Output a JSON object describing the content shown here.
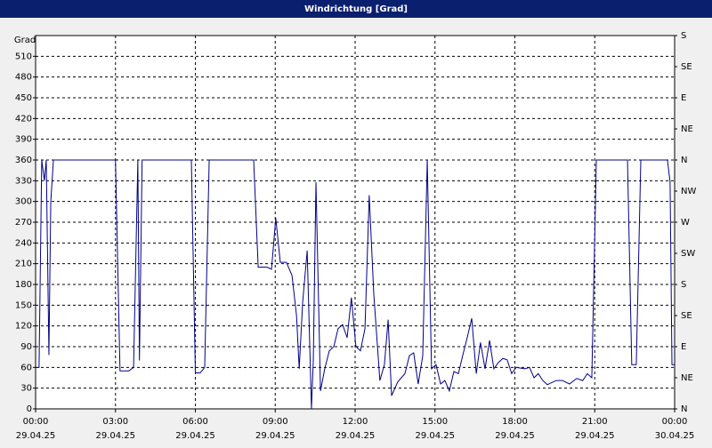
{
  "chart_data": {
    "type": "line",
    "title": "Windrichtung [Grad]",
    "ylabel": "Grad",
    "color": "#00008b",
    "grid": true,
    "ylim": [
      0,
      540
    ],
    "yticks": [
      0,
      30,
      60,
      90,
      120,
      150,
      180,
      210,
      240,
      270,
      300,
      330,
      360,
      390,
      420,
      450,
      480,
      510
    ],
    "y2lim": [
      0,
      540
    ],
    "y2ticks": [
      {
        "value": 0,
        "label": "N"
      },
      {
        "value": 45,
        "label": "NE"
      },
      {
        "value": 90,
        "label": "E"
      },
      {
        "value": 135,
        "label": "SE"
      },
      {
        "value": 180,
        "label": "S"
      },
      {
        "value": 225,
        "label": "SW"
      },
      {
        "value": 270,
        "label": "W"
      },
      {
        "value": 315,
        "label": "NW"
      },
      {
        "value": 360,
        "label": "N"
      },
      {
        "value": 405,
        "label": "NE"
      },
      {
        "value": 450,
        "label": "E"
      },
      {
        "value": 495,
        "label": "SE"
      },
      {
        "value": 540,
        "label": "S"
      }
    ],
    "xlim": [
      0,
      24
    ],
    "xticks": [
      {
        "value": 0,
        "label": "00:00"
      },
      {
        "value": 3,
        "label": "03:00"
      },
      {
        "value": 6,
        "label": "06:00"
      },
      {
        "value": 9,
        "label": "09:00"
      },
      {
        "value": 12,
        "label": "12:00"
      },
      {
        "value": 15,
        "label": "15:00"
      },
      {
        "value": 18,
        "label": "18:00"
      },
      {
        "value": 21,
        "label": "21:00"
      },
      {
        "value": 24,
        "label": "00:00"
      }
    ],
    "xtick_dates": [
      "29.04.25",
      "29.04.25",
      "29.04.25",
      "29.04.25",
      "29.04.25",
      "29.04.25",
      "29.04.25",
      "29.04.25",
      "30.04.25"
    ],
    "x": [
      0,
      0.13,
      0.23,
      0.33,
      0.4,
      0.5,
      0.57,
      0.67,
      3.0,
      3.17,
      3.5,
      3.68,
      3.84,
      3.9,
      4.0,
      5.85,
      6.0,
      6.18,
      6.35,
      6.52,
      8.19,
      8.36,
      8.69,
      8.86,
      9.02,
      9.19,
      9.42,
      9.63,
      9.8,
      9.9,
      10.03,
      10.2,
      10.36,
      10.43,
      10.53,
      10.7,
      10.86,
      11.03,
      11.2,
      11.36,
      11.53,
      11.7,
      11.86,
      12.03,
      12.2,
      12.37,
      12.53,
      12.7,
      12.93,
      13.1,
      13.24,
      13.37,
      13.6,
      13.87,
      14.04,
      14.2,
      14.37,
      14.54,
      14.71,
      14.87,
      15.04,
      15.21,
      15.37,
      15.54,
      15.71,
      15.88,
      16.04,
      16.21,
      16.38,
      16.55,
      16.71,
      16.88,
      17.05,
      17.21,
      17.38,
      17.55,
      17.71,
      17.88,
      18.05,
      18.38,
      18.55,
      18.72,
      18.88,
      19.05,
      19.22,
      19.55,
      19.79,
      20.05,
      20.32,
      20.55,
      20.72,
      20.89,
      21.06,
      22.23,
      22.39,
      22.56,
      22.73,
      23.73,
      23.83,
      23.9,
      24
    ],
    "values": [
      60,
      60,
      360,
      330,
      360,
      78,
      300,
      360,
      360,
      55,
      55,
      60,
      360,
      70,
      360,
      360,
      52,
      52,
      60,
      360,
      360,
      205,
      205,
      202,
      276,
      212,
      212,
      193,
      135,
      58,
      154,
      229,
      0,
      70,
      328,
      26,
      58,
      84,
      90,
      116,
      122,
      103,
      161,
      90,
      84,
      116,
      309,
      167,
      41,
      64,
      129,
      19,
      39,
      51,
      77,
      81,
      36,
      77,
      360,
      58,
      64,
      36,
      41,
      26,
      54,
      51,
      77,
      103,
      131,
      51,
      96,
      58,
      99,
      58,
      67,
      73,
      71,
      51,
      60,
      58,
      60,
      45,
      51,
      41,
      35,
      41,
      41,
      36,
      44,
      41,
      51,
      45,
      360,
      360,
      64,
      64,
      360,
      360,
      328,
      64,
      64
    ]
  }
}
